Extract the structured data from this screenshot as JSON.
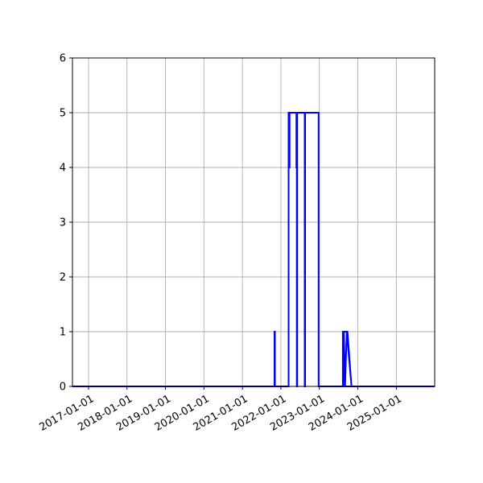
{
  "chart_data": {
    "type": "line",
    "title": "",
    "xlabel": "",
    "ylabel": "",
    "grid": true,
    "colors": {
      "series": "#0000ff",
      "grid": "#b0b0b0",
      "axes": "#000000",
      "background": "#ffffff"
    },
    "x_axis": {
      "type": "date",
      "range": [
        "2016-08-01",
        "2025-12-31"
      ],
      "ticks": [
        {
          "value": "2017-01-01",
          "label": "2017-01-01"
        },
        {
          "value": "2018-01-01",
          "label": "2018-01-01"
        },
        {
          "value": "2019-01-01",
          "label": "2019-01-01"
        },
        {
          "value": "2020-01-01",
          "label": "2020-01-01"
        },
        {
          "value": "2021-01-01",
          "label": "2021-01-01"
        },
        {
          "value": "2022-01-01",
          "label": "2022-01-01"
        },
        {
          "value": "2023-01-01",
          "label": "2023-01-01"
        },
        {
          "value": "2024-01-01",
          "label": "2024-01-01"
        },
        {
          "value": "2025-01-01",
          "label": "2025-01-01"
        }
      ]
    },
    "y_axis": {
      "range": [
        0,
        6
      ],
      "ticks": [
        {
          "value": 0,
          "label": "0"
        },
        {
          "value": 1,
          "label": "1"
        },
        {
          "value": 2,
          "label": "2"
        },
        {
          "value": 3,
          "label": "3"
        },
        {
          "value": 4,
          "label": "4"
        },
        {
          "value": 5,
          "label": "5"
        },
        {
          "value": 6,
          "label": "6"
        }
      ]
    },
    "series": [
      {
        "points": [
          {
            "x": "2016-08-01",
            "y": 0
          },
          {
            "x": "2021-11-01",
            "y": 0
          },
          {
            "x": "2021-11-01",
            "y": 1
          },
          {
            "x": "2021-11-05",
            "y": 1
          },
          {
            "x": "2021-11-05",
            "y": 0
          },
          {
            "x": "2022-03-15",
            "y": 0
          },
          {
            "x": "2022-03-15",
            "y": 5
          },
          {
            "x": "2022-03-20",
            "y": 5
          },
          {
            "x": "2022-03-20",
            "y": 4
          },
          {
            "x": "2022-03-24",
            "y": 4
          },
          {
            "x": "2022-03-24",
            "y": 5
          },
          {
            "x": "2022-05-28",
            "y": 5
          },
          {
            "x": "2022-05-28",
            "y": 4
          },
          {
            "x": "2022-06-01",
            "y": 4
          },
          {
            "x": "2022-06-01",
            "y": 0
          },
          {
            "x": "2022-06-05",
            "y": 0
          },
          {
            "x": "2022-06-05",
            "y": 5
          },
          {
            "x": "2022-08-15",
            "y": 5
          },
          {
            "x": "2022-08-15",
            "y": 0
          },
          {
            "x": "2022-08-19",
            "y": 0
          },
          {
            "x": "2022-08-19",
            "y": 5
          },
          {
            "x": "2022-12-25",
            "y": 5
          },
          {
            "x": "2022-12-25",
            "y": 0
          },
          {
            "x": "2023-08-12",
            "y": 0
          },
          {
            "x": "2023-08-12",
            "y": 1
          },
          {
            "x": "2023-09-25",
            "y": 1
          },
          {
            "x": "2023-11-02",
            "y": 0
          },
          {
            "x": "2023-09-18",
            "y": 1
          },
          {
            "x": "2023-09-02",
            "y": 0
          },
          {
            "x": "2023-08-22",
            "y": 1
          },
          {
            "x": "2023-08-16",
            "y": 0
          },
          {
            "x": "2023-11-02",
            "y": 0
          },
          {
            "x": "2025-12-31",
            "y": 0
          }
        ]
      }
    ]
  }
}
